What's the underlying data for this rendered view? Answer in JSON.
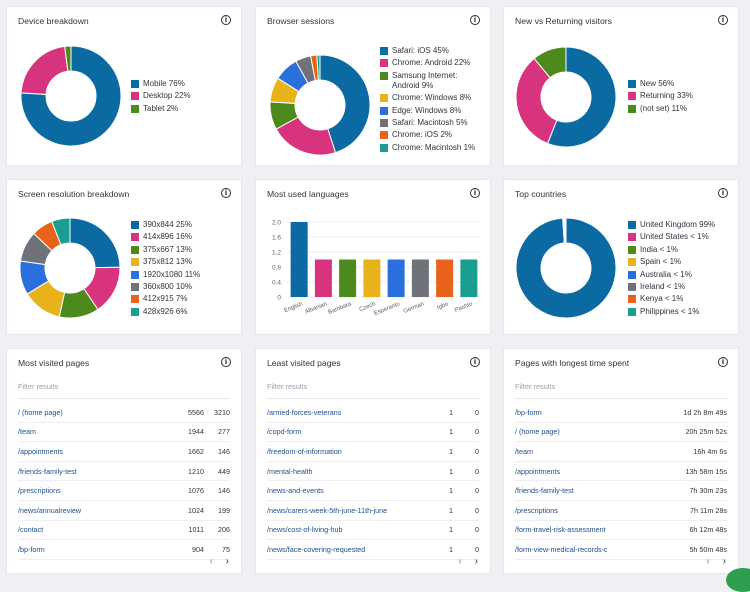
{
  "device": {
    "title": "Device breakdown",
    "legend": [
      "Mobile 76%",
      "Desktop 22%",
      "Tablet 2%"
    ],
    "values": [
      76,
      22,
      2
    ],
    "colors": [
      "#0b6aa2",
      "#d8337f",
      "#4c8a1e"
    ]
  },
  "browser": {
    "title": "Browser sessions",
    "legend": [
      "Safari: iOS 45%",
      "Chrome: Android 22%",
      "Samsung Internet: Android 9%",
      "Chrome: Windows 8%",
      "Edge: Windows 8%",
      "Safari: Macintosh 5%",
      "Chrome: iOS 2%",
      "Chrome: Macintosh 1%"
    ],
    "values": [
      45,
      22,
      9,
      8,
      8,
      5,
      2,
      1
    ],
    "colors": [
      "#0b6aa2",
      "#d8337f",
      "#4c8a1e",
      "#e8b21a",
      "#2a6fdb",
      "#6f7278",
      "#e8631a",
      "#1a9e8f"
    ]
  },
  "returning": {
    "title": "New vs Returning visitors",
    "legend": [
      "New 56%",
      "Returning 33%",
      "(not set) 11%"
    ],
    "values": [
      56,
      33,
      11
    ],
    "colors": [
      "#0b6aa2",
      "#d8337f",
      "#4c8a1e"
    ]
  },
  "resolution": {
    "title": "Screen resolution breakdown",
    "legend": [
      "390x844 25%",
      "414x896 16%",
      "375x667 13%",
      "375x812 13%",
      "1920x1080 11%",
      "360x800 10%",
      "412x915 7%",
      "428x926 6%"
    ],
    "values": [
      25,
      16,
      13,
      13,
      11,
      10,
      7,
      6
    ],
    "colors": [
      "#0b6aa2",
      "#d8337f",
      "#4c8a1e",
      "#e8b21a",
      "#2a6fdb",
      "#6f7278",
      "#e8631a",
      "#1a9e8f"
    ]
  },
  "languages": {
    "title": "Most used languages",
    "chart_data": {
      "type": "bar",
      "categories": [
        "English",
        "Albanian",
        "Bambara",
        "Czech",
        "Esperanto",
        "German",
        "Igbo",
        "Pashto"
      ],
      "values": [
        2,
        1,
        1,
        1,
        1,
        1,
        1,
        1
      ],
      "yticks": [
        "0",
        "0.4",
        "0.8",
        "1.2",
        "1.6",
        "2.0"
      ],
      "ylim": [
        0,
        2
      ],
      "colors": [
        "#0b6aa2",
        "#d8337f",
        "#4c8a1e",
        "#e8b21a",
        "#2a6fdb",
        "#6f7278",
        "#e8631a",
        "#1a9e8f"
      ]
    }
  },
  "countries": {
    "title": "Top countries",
    "legend": [
      "United Kingdom 99%",
      "United States < 1%",
      "India < 1%",
      "Spain < 1%",
      "Australia < 1%",
      "Ireland < 1%",
      "Kenya < 1%",
      "Philippines < 1%"
    ],
    "values": [
      99,
      0.15,
      0.15,
      0.15,
      0.15,
      0.15,
      0.15,
      0.15
    ],
    "colors": [
      "#0b6aa2",
      "#d8337f",
      "#4c8a1e",
      "#e8b21a",
      "#2a6fdb",
      "#6f7278",
      "#e8631a",
      "#1a9e8f"
    ]
  },
  "most_visited": {
    "title": "Most visited pages",
    "filter_placeholder": "Filter results",
    "rows": [
      {
        "path": "/ (home page)",
        "a": "5566",
        "b": "3210"
      },
      {
        "path": "/team",
        "a": "1944",
        "b": "277"
      },
      {
        "path": "/appointments",
        "a": "1662",
        "b": "146"
      },
      {
        "path": "/friends-family-test",
        "a": "1210",
        "b": "449"
      },
      {
        "path": "/prescriptions",
        "a": "1076",
        "b": "146"
      },
      {
        "path": "/news/annualreview",
        "a": "1024",
        "b": "199"
      },
      {
        "path": "/contact",
        "a": "1011",
        "b": "206"
      },
      {
        "path": "/bp-form",
        "a": "904",
        "b": "75"
      }
    ]
  },
  "least_visited": {
    "title": "Least visited pages",
    "filter_placeholder": "Filter results",
    "rows": [
      {
        "path": "/armed-forces-veterans",
        "a": "1",
        "b": "0"
      },
      {
        "path": "/copd-form",
        "a": "1",
        "b": "0"
      },
      {
        "path": "/freedom-of-information",
        "a": "1",
        "b": "0"
      },
      {
        "path": "/mental-health",
        "a": "1",
        "b": "0"
      },
      {
        "path": "/news-and-events",
        "a": "1",
        "b": "0"
      },
      {
        "path": "/news/carers-week-5th-june-11th-june",
        "a": "1",
        "b": "0"
      },
      {
        "path": "/news/cost-of-living-hub",
        "a": "1",
        "b": "0"
      },
      {
        "path": "/news/face-covering-requested",
        "a": "1",
        "b": "0"
      }
    ]
  },
  "longest_time": {
    "title": "Pages with longest time spent",
    "filter_placeholder": "Filter results",
    "rows": [
      {
        "path": "/bp-form",
        "t": "1d 2h 8m 49s"
      },
      {
        "path": "/ (home page)",
        "t": "20h 25m 52s"
      },
      {
        "path": "/team",
        "t": "16h 4m 6s"
      },
      {
        "path": "/appointments",
        "t": "13h 58m 15s"
      },
      {
        "path": "/friends-family-test",
        "t": "7h 30m 23s"
      },
      {
        "path": "/prescriptions",
        "t": "7h 11m 28s"
      },
      {
        "path": "/form-travel-risk-assessment",
        "t": "6h 12m 48s"
      },
      {
        "path": "/form-view-medical-records-online",
        "t": "5h 50m 48s"
      }
    ]
  },
  "pager": {
    "prev": "‹",
    "next": "›"
  },
  "info_glyph": "i"
}
